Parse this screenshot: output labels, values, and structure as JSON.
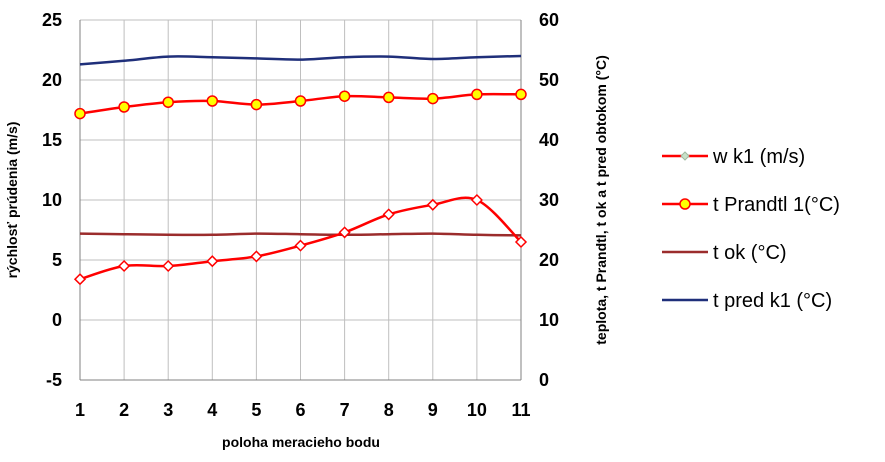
{
  "chart_data": {
    "type": "line",
    "x": [
      1,
      2,
      3,
      4,
      5,
      6,
      7,
      8,
      9,
      10,
      11
    ],
    "xlabel": "poloha meracieho bodu",
    "ylabel_left": "rýchlosť prúdenia (m/s)",
    "ylabel_right": "teplota, t Prandtl, t ok a t pred obtokom (°C)",
    "ylim_left": [
      -5,
      25
    ],
    "ylim_right": [
      0,
      60
    ],
    "yticks_left": [
      -5,
      0,
      5,
      10,
      15,
      20,
      25
    ],
    "yticks_right": [
      0,
      10,
      20,
      30,
      40,
      50,
      60
    ],
    "grid": true,
    "legend_position": "right",
    "series": [
      {
        "name": "w k1 (m/s)",
        "axis": "left",
        "color": "#ff0000",
        "marker": "diamond",
        "marker_fill": "#ffffff",
        "x": [
          1,
          2,
          3,
          4,
          5,
          6,
          7,
          8,
          9,
          10,
          11
        ],
        "values": [
          3.4,
          4.5,
          4.5,
          4.9,
          5.3,
          6.2,
          7.3,
          8.8,
          9.6,
          10.0,
          6.5
        ]
      },
      {
        "name": "t Prandtl 1(°C)",
        "axis": "right",
        "color": "#ff0000",
        "marker": "circle",
        "marker_fill": "#ffff00",
        "x": [
          1,
          2,
          3,
          4,
          5,
          6,
          7,
          8,
          9,
          10,
          11
        ],
        "values": [
          44.4,
          45.5,
          46.3,
          46.5,
          45.9,
          46.5,
          47.3,
          47.1,
          46.9,
          47.6,
          47.6
        ]
      },
      {
        "name": "t ok (°C)",
        "axis": "right",
        "color": "#9b2c2c",
        "marker": "none",
        "x": [
          1,
          2,
          3,
          4,
          5,
          6,
          7,
          8,
          9,
          10,
          11
        ],
        "values": [
          24.4,
          24.3,
          24.2,
          24.2,
          24.4,
          24.3,
          24.2,
          24.3,
          24.4,
          24.2,
          24.1
        ]
      },
      {
        "name": "t pred k1 (°C)",
        "axis": "right",
        "color": "#1f2f7a",
        "marker": "none",
        "x": [
          1,
          2,
          3,
          4,
          5,
          6,
          7,
          8,
          9,
          10,
          11
        ],
        "values": [
          52.6,
          53.2,
          53.9,
          53.8,
          53.6,
          53.4,
          53.8,
          53.9,
          53.5,
          53.8,
          54.0
        ]
      }
    ]
  }
}
